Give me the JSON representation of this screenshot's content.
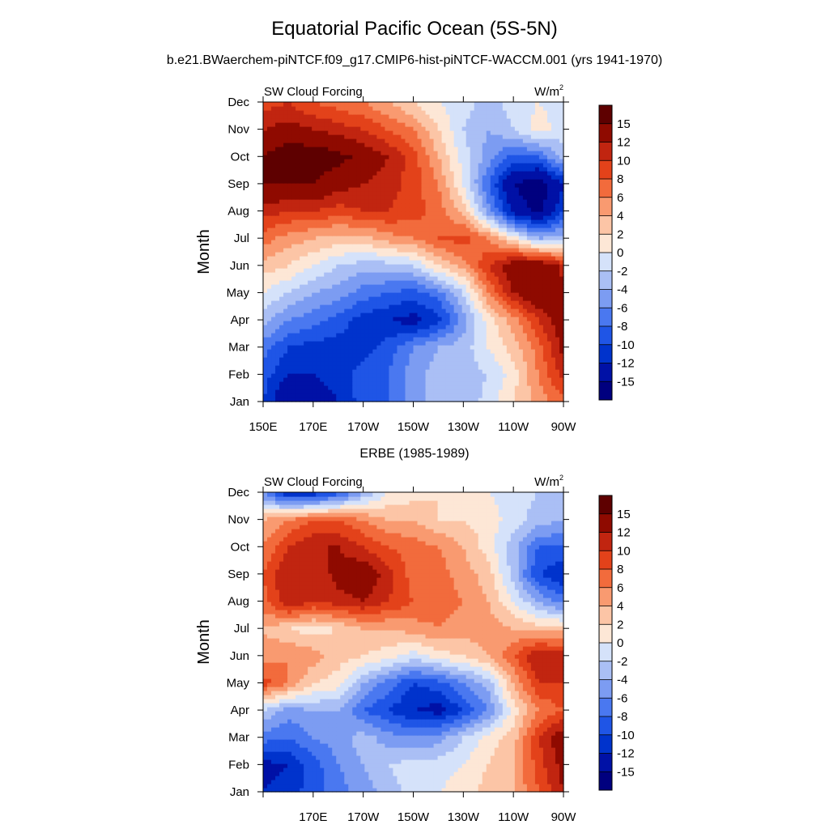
{
  "figure": {
    "title": "Equatorial Pacific Ocean (5S-5N)",
    "subtitle": "b.e21.BWaerchem-piNTCF.f09_g17.CMIP6-hist-piNTCF-WACCM.001 (yrs 1941-1970)"
  },
  "colorbar": {
    "levels": [
      "-15",
      "-12",
      "-10",
      "-8",
      "-6",
      "-4",
      "-2",
      "0",
      "2",
      "4",
      "6",
      "8",
      "10",
      "12",
      "15"
    ],
    "colors": [
      "#00007f",
      "#0011a6",
      "#0033cc",
      "#1f55e6",
      "#4a78f0",
      "#7c9cf2",
      "#aabff5",
      "#d5e2fa",
      "#fde7d6",
      "#fcc5a6",
      "#f99a70",
      "#f26b3c",
      "#e3421a",
      "#c12510",
      "#8f0a00",
      "#5e0000"
    ]
  },
  "chart_data": [
    {
      "type": "heatmap",
      "panel_title": "",
      "left_label": "SW Cloud Forcing",
      "right_label": "W/m",
      "right_label_sup": "2",
      "ylabel": "Month",
      "x_ticks": [
        "150E",
        "170E",
        "170W",
        "150W",
        "130W",
        "110W",
        "90W"
      ],
      "x_tick_lon": [
        150,
        170,
        190,
        210,
        230,
        250,
        270
      ],
      "xlim": [
        150,
        270
      ],
      "y_ticks": [
        "Jan",
        "Feb",
        "Mar",
        "Apr",
        "May",
        "Jun",
        "Jul",
        "Aug",
        "Sep",
        "Oct",
        "Nov",
        "Dec"
      ],
      "grid_lon": [
        150,
        160,
        170,
        180,
        190,
        200,
        210,
        220,
        230,
        240,
        250,
        260,
        270
      ],
      "values": [
        [
          -10,
          -15,
          -14,
          -12,
          -9,
          -8,
          -5,
          -3,
          -4,
          -1,
          2,
          5,
          7
        ],
        [
          -9,
          -12,
          -12,
          -11,
          -9,
          -8,
          -5,
          -3,
          -3,
          -2,
          1,
          6,
          11
        ],
        [
          -7,
          -10,
          -11,
          -11,
          -11,
          -9,
          -6,
          -4,
          -3,
          0,
          3,
          7,
          13
        ],
        [
          -3,
          -6,
          -7,
          -9,
          -11,
          -12,
          -13,
          -11,
          -5,
          1,
          5,
          10,
          14
        ],
        [
          0,
          -2,
          -4,
          -5,
          -7,
          -8,
          -9,
          -7,
          -2,
          6,
          12,
          15,
          13
        ],
        [
          3,
          2,
          0,
          -2,
          -3,
          -3,
          -2,
          2,
          5,
          10,
          14,
          15,
          11
        ],
        [
          7,
          5,
          4,
          3,
          3,
          5,
          6,
          8,
          9,
          6,
          1,
          -4,
          -3
        ],
        [
          11,
          10,
          10,
          9,
          10,
          10,
          9,
          7,
          3,
          -5,
          -13,
          -16,
          -10
        ],
        [
          15,
          15,
          15,
          13,
          12,
          11,
          9,
          6,
          0,
          -8,
          -15,
          -17,
          -12
        ],
        [
          15,
          17,
          17,
          16,
          14,
          12,
          9,
          4,
          -1,
          -5,
          -9,
          -8,
          -3
        ],
        [
          12,
          13,
          12,
          11,
          10,
          8,
          6,
          2,
          -2,
          -4,
          -2,
          1,
          -1
        ],
        [
          9,
          10,
          8,
          7,
          6,
          4,
          2,
          0,
          -1,
          -3,
          -1,
          0,
          -1
        ]
      ]
    },
    {
      "type": "heatmap",
      "panel_title": "ERBE (1985-1989)",
      "left_label": "SW Cloud Forcing",
      "right_label": "W/m",
      "right_label_sup": "2",
      "ylabel": "Month",
      "x_ticks": [
        "170E",
        "170W",
        "150W",
        "130W",
        "110W",
        "90W"
      ],
      "x_tick_lon": [
        170,
        190,
        210,
        230,
        250,
        270
      ],
      "xlim": [
        150,
        270
      ],
      "y_ticks": [
        "Jan",
        "Feb",
        "Mar",
        "Apr",
        "May",
        "Jun",
        "Jul",
        "Aug",
        "Sep",
        "Oct",
        "Nov",
        "Dec"
      ],
      "grid_lon": [
        150,
        160,
        170,
        180,
        190,
        200,
        210,
        220,
        230,
        240,
        250,
        260,
        270
      ],
      "values": [
        [
          -12,
          -11,
          -9,
          -7,
          -5,
          -3,
          -1,
          0,
          1,
          3,
          4,
          8,
          12
        ],
        [
          -13,
          -12,
          -9,
          -6,
          -4,
          -2,
          -1,
          -1,
          0,
          2,
          4,
          9,
          13
        ],
        [
          -7,
          -8,
          -6,
          -5,
          -3,
          -5,
          -6,
          -5,
          -2,
          1,
          3,
          10,
          14
        ],
        [
          -2,
          -5,
          -4,
          -4,
          -8,
          -10,
          -12,
          -13,
          -10,
          -6,
          1,
          6,
          8
        ],
        [
          9,
          6,
          2,
          1,
          -4,
          -7,
          -10,
          -9,
          -6,
          -3,
          4,
          10,
          10
        ],
        [
          5,
          6,
          5,
          3,
          2,
          1,
          -1,
          1,
          2,
          4,
          8,
          12,
          11
        ],
        [
          4,
          2,
          1,
          2,
          4,
          4,
          5,
          6,
          5,
          5,
          4,
          3,
          3
        ],
        [
          7,
          12,
          10,
          11,
          12,
          10,
          8,
          7,
          6,
          4,
          0,
          -4,
          -7
        ],
        [
          8,
          12,
          10,
          13,
          14,
          11,
          7,
          7,
          5,
          3,
          -3,
          -10,
          -12
        ],
        [
          6,
          10,
          12,
          12,
          10,
          8,
          7,
          6,
          4,
          1,
          -3,
          -8,
          -8
        ],
        [
          4,
          6,
          8,
          8,
          6,
          4,
          4,
          2,
          2,
          1,
          -1,
          -3,
          -4
        ],
        [
          -6,
          -12,
          -12,
          -9,
          -4,
          0,
          1,
          2,
          1,
          0,
          -1,
          -2,
          -2
        ]
      ]
    }
  ]
}
